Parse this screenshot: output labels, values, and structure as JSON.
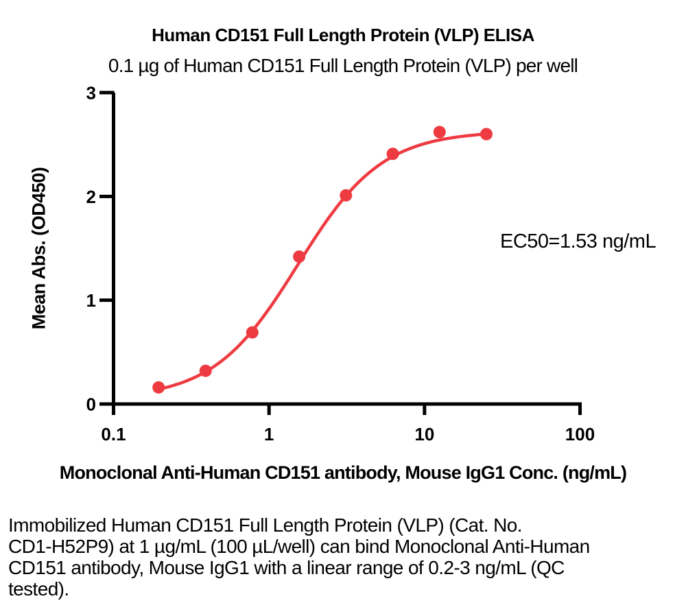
{
  "chart_data": {
    "type": "scatter",
    "title": "Human CD151 Full Length Protein (VLP) ELISA",
    "subtitle": "0.1 µg of Human CD151 Full Length Protein (VLP) per well",
    "xlabel": "Monoclonal Anti-Human CD151 antibody, Mouse IgG1 Conc. (ng/mL)",
    "ylabel": "Mean Abs. (OD450)",
    "annotation": "EC50=1.53 ng/mL",
    "x_scale": "log10",
    "xlim": [
      0.1,
      100
    ],
    "ylim": [
      0,
      3
    ],
    "x_ticks": [
      0.1,
      1,
      10,
      100
    ],
    "x_tick_labels": [
      "0.1",
      "1",
      "10",
      "100"
    ],
    "y_ticks": [
      0,
      1,
      2,
      3
    ],
    "y_tick_labels": [
      "0",
      "1",
      "2",
      "3"
    ],
    "grid": false,
    "legend": "none",
    "series": [
      {
        "name": "Monoclonal Anti-Human CD151 antibody, Mouse IgG1",
        "x": [
          0.195,
          0.391,
          0.781,
          1.563,
          3.125,
          6.25,
          12.5,
          25
        ],
        "y": [
          0.16,
          0.32,
          0.69,
          1.42,
          2.01,
          2.41,
          2.62,
          2.6
        ]
      }
    ],
    "fit_curve": {
      "model": "4PL",
      "bottom": 0.05,
      "top": 2.63,
      "ec50": 1.53,
      "hill": 1.6
    },
    "colors": {
      "curve": "#ED3B41",
      "marker": "#ED3B41",
      "axis": "#000000",
      "text": "#000000"
    },
    "marker": {
      "shape": "circle",
      "radius_px": 9
    }
  },
  "caption": {
    "lines": [
      "Immobilized Human CD151 Full Length Protein (VLP) (Cat. No.",
      "CD1-H52P9) at 1 µg/mL (100 µL/well) can bind Monoclonal Anti-Human",
      "CD151 antibody, Mouse IgG1 with a linear range of 0.2-3 ng/mL (QC",
      "tested)."
    ]
  }
}
